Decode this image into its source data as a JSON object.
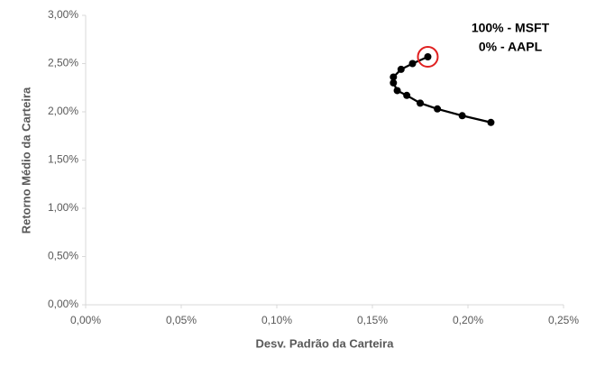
{
  "chart_data": {
    "type": "line",
    "xlabel": "Desv. Padrão da Carteira",
    "ylabel": "Retorno Médio da Carteira",
    "annotation": [
      "100% - MSFT",
      "0% - AAPL"
    ],
    "x": [
      0.212,
      0.197,
      0.184,
      0.175,
      0.168,
      0.163,
      0.161,
      0.161,
      0.165,
      0.171,
      0.179
    ],
    "series": [
      {
        "color": "#000000",
        "values": [
          1.89,
          1.96,
          2.03,
          2.09,
          2.17,
          2.22,
          2.3,
          2.36,
          2.44,
          2.5,
          2.57
        ]
      }
    ],
    "highlight_color": "#e02020",
    "xlim": [
      0,
      0.25
    ],
    "ylim": [
      0,
      3
    ],
    "xticks": [
      {
        "value": 0,
        "label": "0,00%"
      },
      {
        "value": 0.05,
        "label": "0,05%"
      },
      {
        "value": 0.1,
        "label": "0,10%"
      },
      {
        "value": 0.15,
        "label": "0,15%"
      },
      {
        "value": 0.2,
        "label": "0,20%"
      },
      {
        "value": 0.25,
        "label": "0,25%"
      }
    ],
    "yticks": [
      {
        "value": 0,
        "label": "0,00%"
      },
      {
        "value": 0.5,
        "label": "0,50%"
      },
      {
        "value": 1,
        "label": "1,00%"
      },
      {
        "value": 1.5,
        "label": "1,50%"
      },
      {
        "value": 2,
        "label": "2,00%"
      },
      {
        "value": 2.5,
        "label": "2,50%"
      },
      {
        "value": 3,
        "label": "3,00%"
      }
    ]
  }
}
